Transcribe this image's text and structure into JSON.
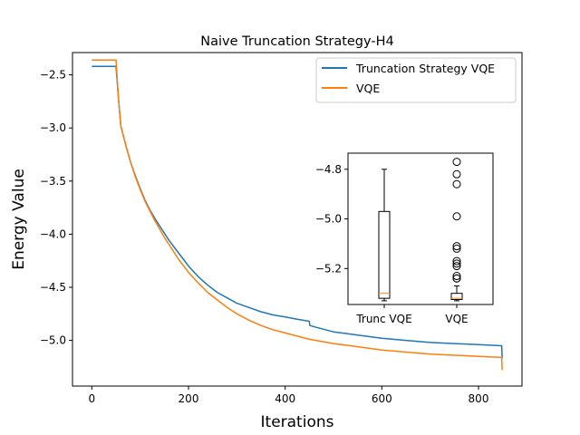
{
  "chart_data": [
    {
      "type": "line",
      "title": "Naive Truncation Strategy-H4",
      "xlabel": "Iterations",
      "ylabel": "Energy Value",
      "xlim": [
        -40,
        890
      ],
      "ylim": [
        -5.43,
        -2.29
      ],
      "xticks": [
        0,
        200,
        400,
        600,
        800
      ],
      "xtick_labels": [
        "0",
        "200",
        "400",
        "600",
        "800"
      ],
      "yticks": [
        -2.5,
        -3.0,
        -3.5,
        -4.0,
        -4.5,
        -5.0
      ],
      "ytick_labels": [
        "−2.5",
        "−3.0",
        "−3.5",
        "−4.0",
        "−4.5",
        "−5.0"
      ],
      "grid": false,
      "legend_position": "top-right",
      "series": [
        {
          "name": "Truncation Strategy VQE",
          "color": "#1f77b4",
          "x": [
            0,
            20,
            45,
            50,
            55,
            60,
            70,
            80,
            90,
            100,
            110,
            120,
            130,
            140,
            150,
            160,
            170,
            180,
            190,
            200,
            220,
            240,
            260,
            280,
            300,
            325,
            350,
            375,
            400,
            425,
            450,
            451,
            475,
            500,
            550,
            600,
            650,
            700,
            750,
            800,
            848,
            849
          ],
          "y": [
            -2.42,
            -2.42,
            -2.42,
            -2.42,
            -2.72,
            -2.98,
            -3.16,
            -3.32,
            -3.45,
            -3.57,
            -3.68,
            -3.77,
            -3.85,
            -3.92,
            -3.99,
            -4.06,
            -4.12,
            -4.18,
            -4.24,
            -4.3,
            -4.4,
            -4.48,
            -4.55,
            -4.6,
            -4.65,
            -4.69,
            -4.73,
            -4.76,
            -4.78,
            -4.8,
            -4.82,
            -4.86,
            -4.89,
            -4.92,
            -4.95,
            -4.98,
            -5.0,
            -5.02,
            -5.03,
            -5.04,
            -5.05,
            -5.17
          ]
        },
        {
          "name": "VQE",
          "color": "#ff7f0e",
          "x": [
            0,
            20,
            45,
            50,
            55,
            60,
            70,
            80,
            90,
            100,
            110,
            120,
            130,
            140,
            150,
            160,
            170,
            180,
            190,
            200,
            220,
            240,
            260,
            280,
            300,
            325,
            350,
            375,
            400,
            425,
            450,
            475,
            500,
            550,
            600,
            650,
            700,
            750,
            800,
            848,
            849
          ],
          "y": [
            -2.36,
            -2.36,
            -2.36,
            -2.36,
            -2.72,
            -2.98,
            -3.16,
            -3.32,
            -3.46,
            -3.58,
            -3.69,
            -3.78,
            -3.87,
            -3.95,
            -4.03,
            -4.1,
            -4.17,
            -4.24,
            -4.3,
            -4.36,
            -4.46,
            -4.55,
            -4.62,
            -4.69,
            -4.75,
            -4.81,
            -4.86,
            -4.9,
            -4.93,
            -4.96,
            -4.99,
            -5.01,
            -5.03,
            -5.06,
            -5.09,
            -5.11,
            -5.13,
            -5.14,
            -5.15,
            -5.16,
            -5.28
          ]
        }
      ]
    },
    {
      "type": "box",
      "title": "",
      "categories": [
        "Trunc VQE",
        "VQE"
      ],
      "ylim": [
        -5.37,
        -2.29
      ],
      "yticks": [
        -4.8,
        -5.0,
        -5.2
      ],
      "ytick_labels": [
        "−4.8",
        "−5.0",
        "−5.2"
      ],
      "boxes": [
        {
          "label": "Trunc VQE",
          "whisker_high": -4.8,
          "q3": -4.97,
          "median": -5.3,
          "q1": -5.32,
          "whisker_low": -5.33,
          "outliers": []
        },
        {
          "label": "VQE",
          "whisker_high": -5.27,
          "q3": -5.3,
          "median": -5.32,
          "q1": -5.325,
          "whisker_low": -5.33,
          "outliers": [
            -4.77,
            -4.82,
            -4.86,
            -4.99,
            -5.11,
            -5.12,
            -5.17,
            -5.18,
            -5.19,
            -5.23,
            -5.24,
            -5.24
          ]
        }
      ]
    }
  ]
}
